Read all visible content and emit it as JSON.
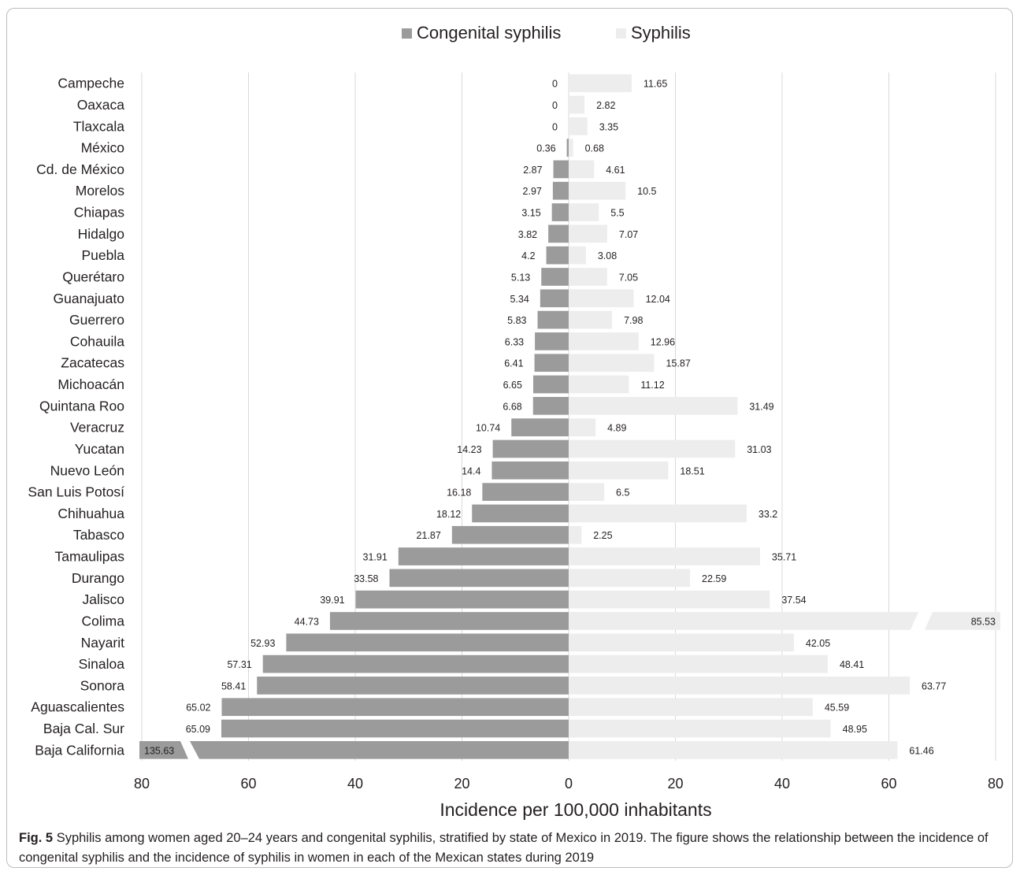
{
  "chart_data": {
    "type": "bar",
    "orientation": "horizontal-diverging",
    "xlabel": "Incidence per 100,000 inhabitants",
    "x_ticks": [
      "80",
      "60",
      "40",
      "20",
      "0",
      "20",
      "40",
      "60",
      "80"
    ],
    "xlim_left": [
      0,
      80
    ],
    "xlim_right": [
      0,
      80
    ],
    "grid": "vertical",
    "legend_position": "top",
    "categories": [
      "Campeche",
      "Oaxaca",
      "Tlaxcala",
      "México",
      "Cd. de México",
      "Morelos",
      "Chiapas",
      "Hidalgo",
      "Puebla",
      "Querétaro",
      "Guanajuato",
      "Guerrero",
      "Cohauila",
      "Zacatecas",
      "Michoacán",
      "Quintana Roo",
      "Veracruz",
      "Yucatan",
      "Nuevo León",
      "San Luis Potosí",
      "Chihuahua",
      "Tabasco",
      "Tamaulipas",
      "Durango",
      "Jalisco",
      "Colima",
      "Nayarit",
      "Sinaloa",
      "Sonora",
      "Aguascalientes",
      "Baja Cal. Sur",
      "Baja California"
    ],
    "series": [
      {
        "name": "Congenital syphilis",
        "color": "#9b9b9b",
        "side": "left",
        "values": [
          0,
          0,
          0,
          0.36,
          2.87,
          2.97,
          3.15,
          3.82,
          4.2,
          5.13,
          5.34,
          5.83,
          6.33,
          6.41,
          6.65,
          6.68,
          10.74,
          14.23,
          14.4,
          16.18,
          18.12,
          21.87,
          31.91,
          33.58,
          39.91,
          44.73,
          52.93,
          57.31,
          58.41,
          65.02,
          65.09,
          135.63
        ],
        "labels": [
          "0",
          "0",
          "0",
          "0.36",
          "2.87",
          "2.97",
          "3.15",
          "3.82",
          "4.2",
          "5.13",
          "5.34",
          "5.83",
          "6.33",
          "6.41",
          "6.65",
          "6.68",
          "10.74",
          "14.23",
          "14.4",
          "16.18",
          "18.12",
          "21.87",
          "31.91",
          "33.58",
          "39.91",
          "44.73",
          "52.93",
          "57.31",
          "58.41",
          "65.02",
          "65.09",
          "135.63"
        ]
      },
      {
        "name": "Syphilis",
        "color": "#ededed",
        "side": "right",
        "values": [
          11.65,
          2.82,
          3.35,
          0.68,
          4.61,
          10.5,
          5.5,
          7.07,
          3.08,
          7.05,
          12.04,
          7.98,
          12.96,
          15.87,
          11.12,
          31.49,
          4.89,
          31.03,
          18.51,
          6.5,
          33.2,
          2.25,
          35.71,
          22.59,
          37.54,
          85.53,
          42.05,
          48.41,
          63.77,
          45.59,
          48.95,
          61.46
        ],
        "labels": [
          "11.65",
          "2.82",
          "3.35",
          "0.68",
          "4.61",
          "10.5",
          "5.5",
          "7.07",
          "3.08",
          "7.05",
          "12.04",
          "7.98",
          "12.96",
          "15.87",
          "11.12",
          "31.49",
          "4.89",
          "31.03",
          "18.51",
          "6.5",
          "33.2",
          "2.25",
          "35.71",
          "22.59",
          "37.54",
          "85.53",
          "42.05",
          "48.41",
          "63.77",
          "45.59",
          "48.95",
          "61.46"
        ]
      }
    ],
    "broken_bars": [
      {
        "category": "Baja California",
        "series": "Congenital syphilis"
      },
      {
        "category": "Colima",
        "series": "Syphilis"
      }
    ]
  },
  "caption": {
    "label": "Fig. 5",
    "text": "Syphilis among women aged 20–24 years and congenital syphilis, stratified by state of Mexico in 2019. The figure shows the relationship between the incidence of congenital syphilis and the incidence of syphilis in women in each of the Mexican states during 2019"
  }
}
